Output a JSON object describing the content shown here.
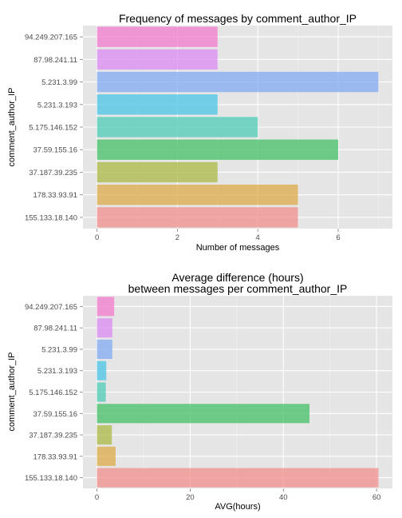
{
  "chart_data": [
    {
      "type": "bar",
      "orientation": "horizontal",
      "title": "Frequency of messages by comment_author_IP",
      "xlabel": "Number of messages",
      "ylabel": "comment_author_IP",
      "categories": [
        "94.249.207.165",
        "87.98.241.11",
        "5.231.3.99",
        "5.231.3.193",
        "5.175.146.152",
        "37.59.155.16",
        "37.187.39.235",
        "178.33.93.91",
        "155.133.18.140"
      ],
      "values": [
        3,
        3,
        7,
        3,
        4,
        6,
        3,
        5,
        5
      ],
      "colors": [
        "#F27ACE",
        "#DA8AF2",
        "#7FA9F2",
        "#48C4E4",
        "#4CCBB4",
        "#43C065",
        "#A9B844",
        "#DDA94A",
        "#F08E8B"
      ],
      "xlim": [
        -0.35,
        7.35
      ],
      "xticks": [
        0,
        2,
        4,
        6
      ],
      "xtick_labels": [
        "0",
        "2",
        "4",
        "6"
      ],
      "grid": true
    },
    {
      "type": "bar",
      "orientation": "horizontal",
      "title": [
        "Average difference (hours)",
        "between messages per comment_author_IP"
      ],
      "xlabel": "AVG(hours)",
      "ylabel": "comment_author_IP",
      "categories": [
        "94.249.207.165",
        "87.98.241.11",
        "5.231.3.99",
        "5.231.3.193",
        "5.175.146.152",
        "37.59.155.16",
        "37.187.39.235",
        "178.33.93.91",
        "155.133.18.140"
      ],
      "values": [
        3.7,
        3.3,
        3.3,
        2.0,
        1.9,
        45.6,
        3.2,
        4.0,
        60.4
      ],
      "colors": [
        "#F27ACE",
        "#DA8AF2",
        "#7FA9F2",
        "#48C4E4",
        "#4CCBB4",
        "#43C065",
        "#A9B844",
        "#DDA94A",
        "#F08E8B"
      ],
      "xlim": [
        -3.0,
        63.4
      ],
      "xticks": [
        0,
        20,
        40,
        60
      ],
      "xtick_labels": [
        "0",
        "20",
        "40",
        "60"
      ],
      "grid": true
    }
  ]
}
